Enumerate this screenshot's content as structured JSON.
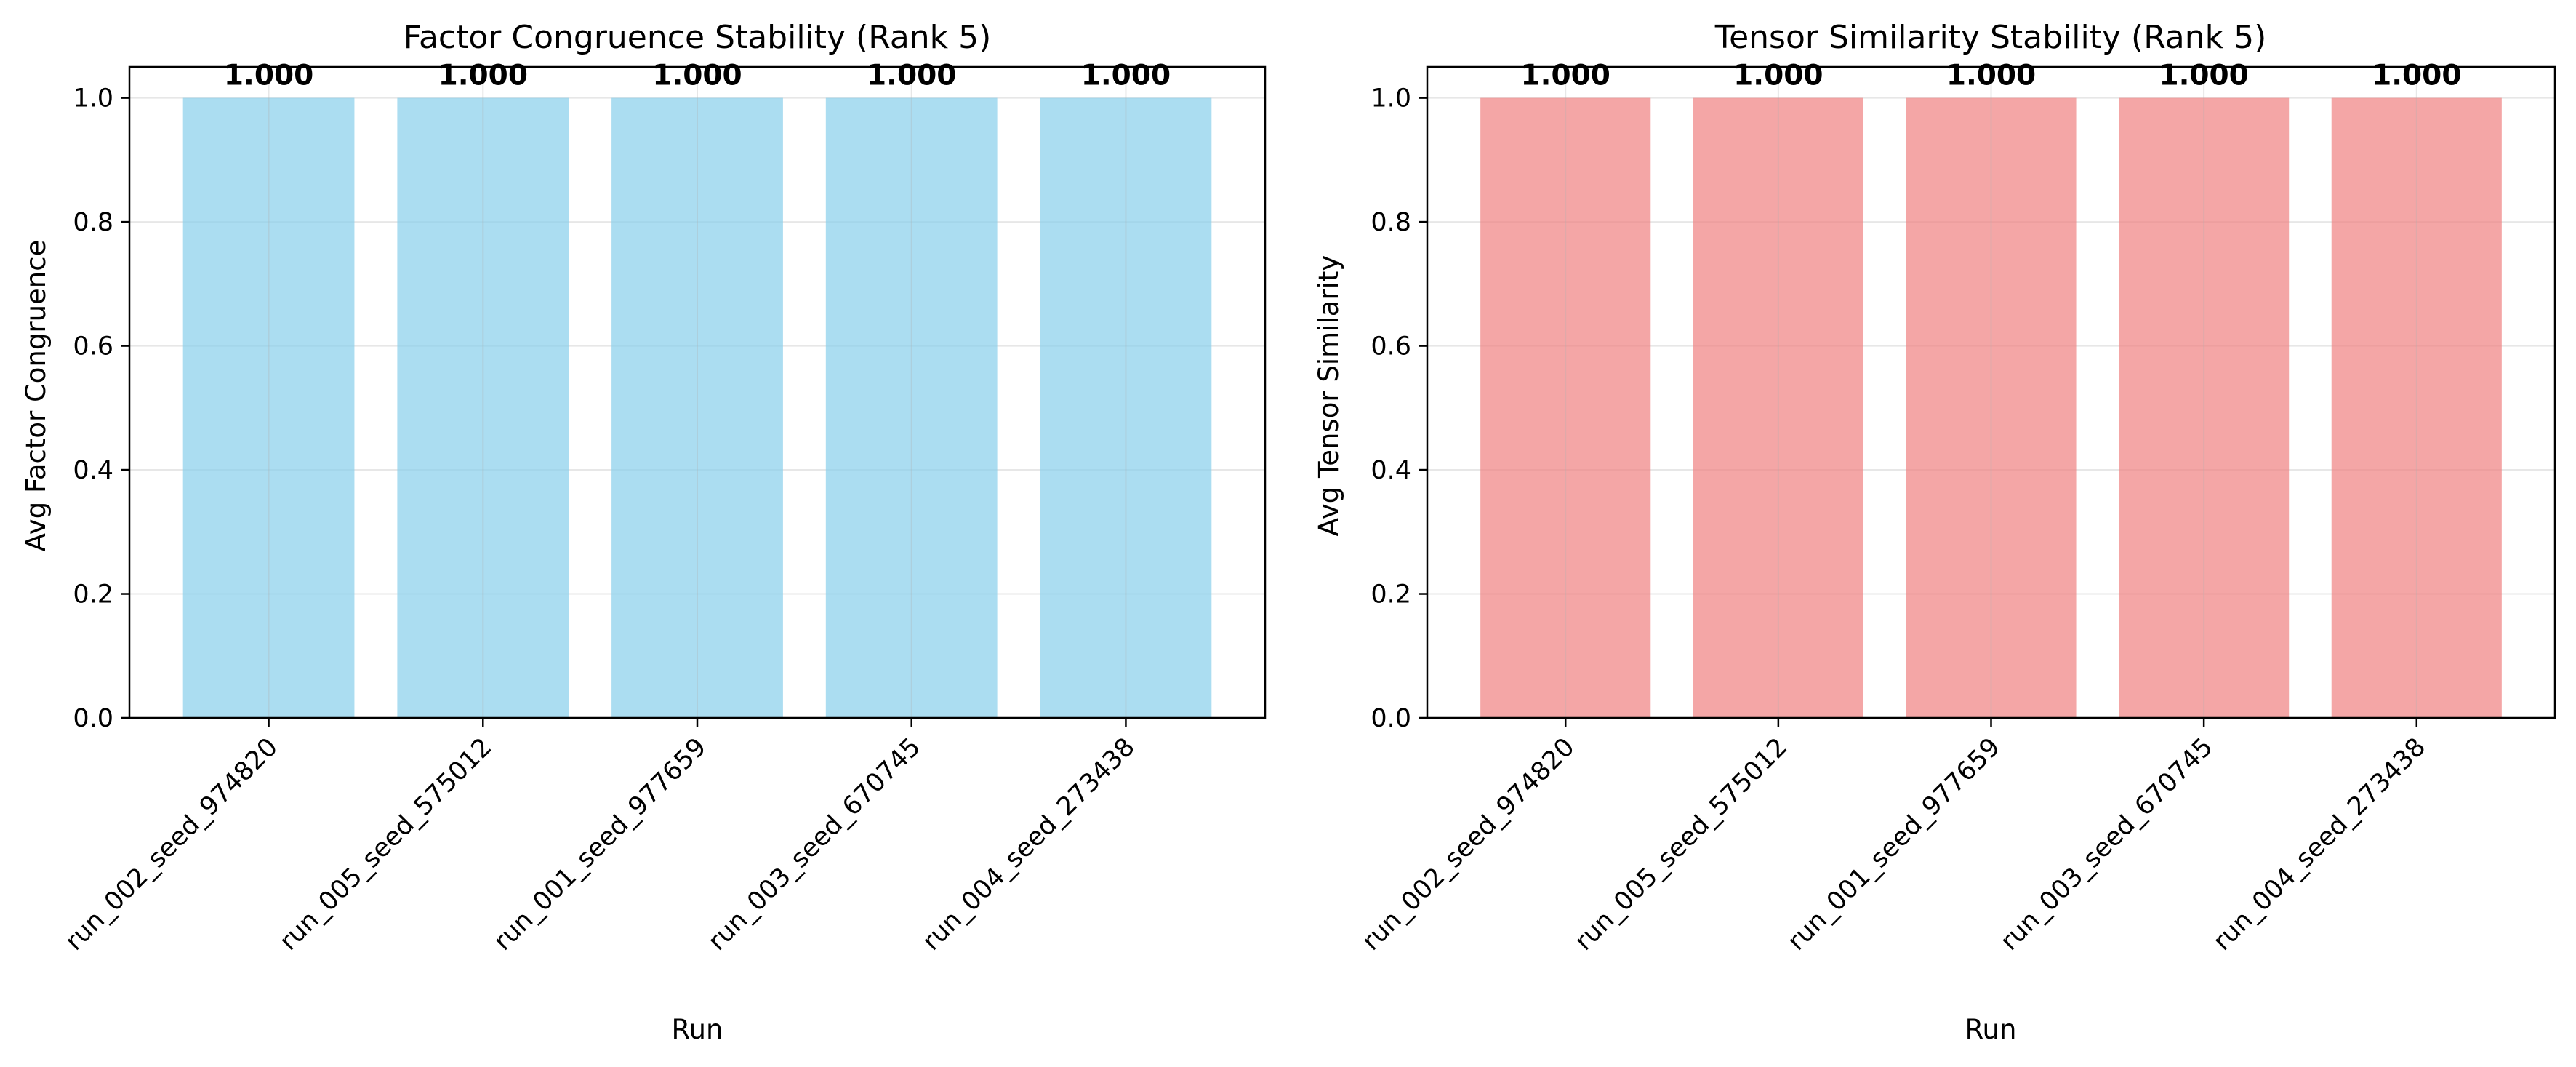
{
  "chart_data": [
    {
      "type": "bar",
      "title": "Factor Congruence Stability (Rank 5)",
      "xlabel": "Run",
      "ylabel": "Avg Factor Congruence",
      "categories": [
        "run_002_seed_974820",
        "run_005_seed_575012",
        "run_001_seed_977659",
        "run_003_seed_670745",
        "run_004_seed_273438"
      ],
      "values": [
        1.0,
        1.0,
        1.0,
        1.0,
        1.0
      ],
      "data_labels": [
        "1.000",
        "1.000",
        "1.000",
        "1.000",
        "1.000"
      ],
      "ylim": [
        0,
        1.05
      ],
      "yticks": [
        0.0,
        0.2,
        0.4,
        0.6,
        0.8,
        1.0
      ],
      "ytick_labels": [
        "0.0",
        "0.2",
        "0.4",
        "0.6",
        "0.8",
        "1.0"
      ],
      "bar_color": "#87CEEB",
      "grid": true
    },
    {
      "type": "bar",
      "title": "Tensor Similarity Stability (Rank 5)",
      "xlabel": "Run",
      "ylabel": "Avg Tensor Similarity",
      "categories": [
        "run_002_seed_974820",
        "run_005_seed_575012",
        "run_001_seed_977659",
        "run_003_seed_670745",
        "run_004_seed_273438"
      ],
      "values": [
        1.0,
        1.0,
        1.0,
        1.0,
        1.0
      ],
      "data_labels": [
        "1.000",
        "1.000",
        "1.000",
        "1.000",
        "1.000"
      ],
      "ylim": [
        0,
        1.05
      ],
      "yticks": [
        0.0,
        0.2,
        0.4,
        0.6,
        0.8,
        1.0
      ],
      "ytick_labels": [
        "0.0",
        "0.2",
        "0.4",
        "0.6",
        "0.8",
        "1.0"
      ],
      "bar_color": "#F08080",
      "grid": true
    }
  ]
}
